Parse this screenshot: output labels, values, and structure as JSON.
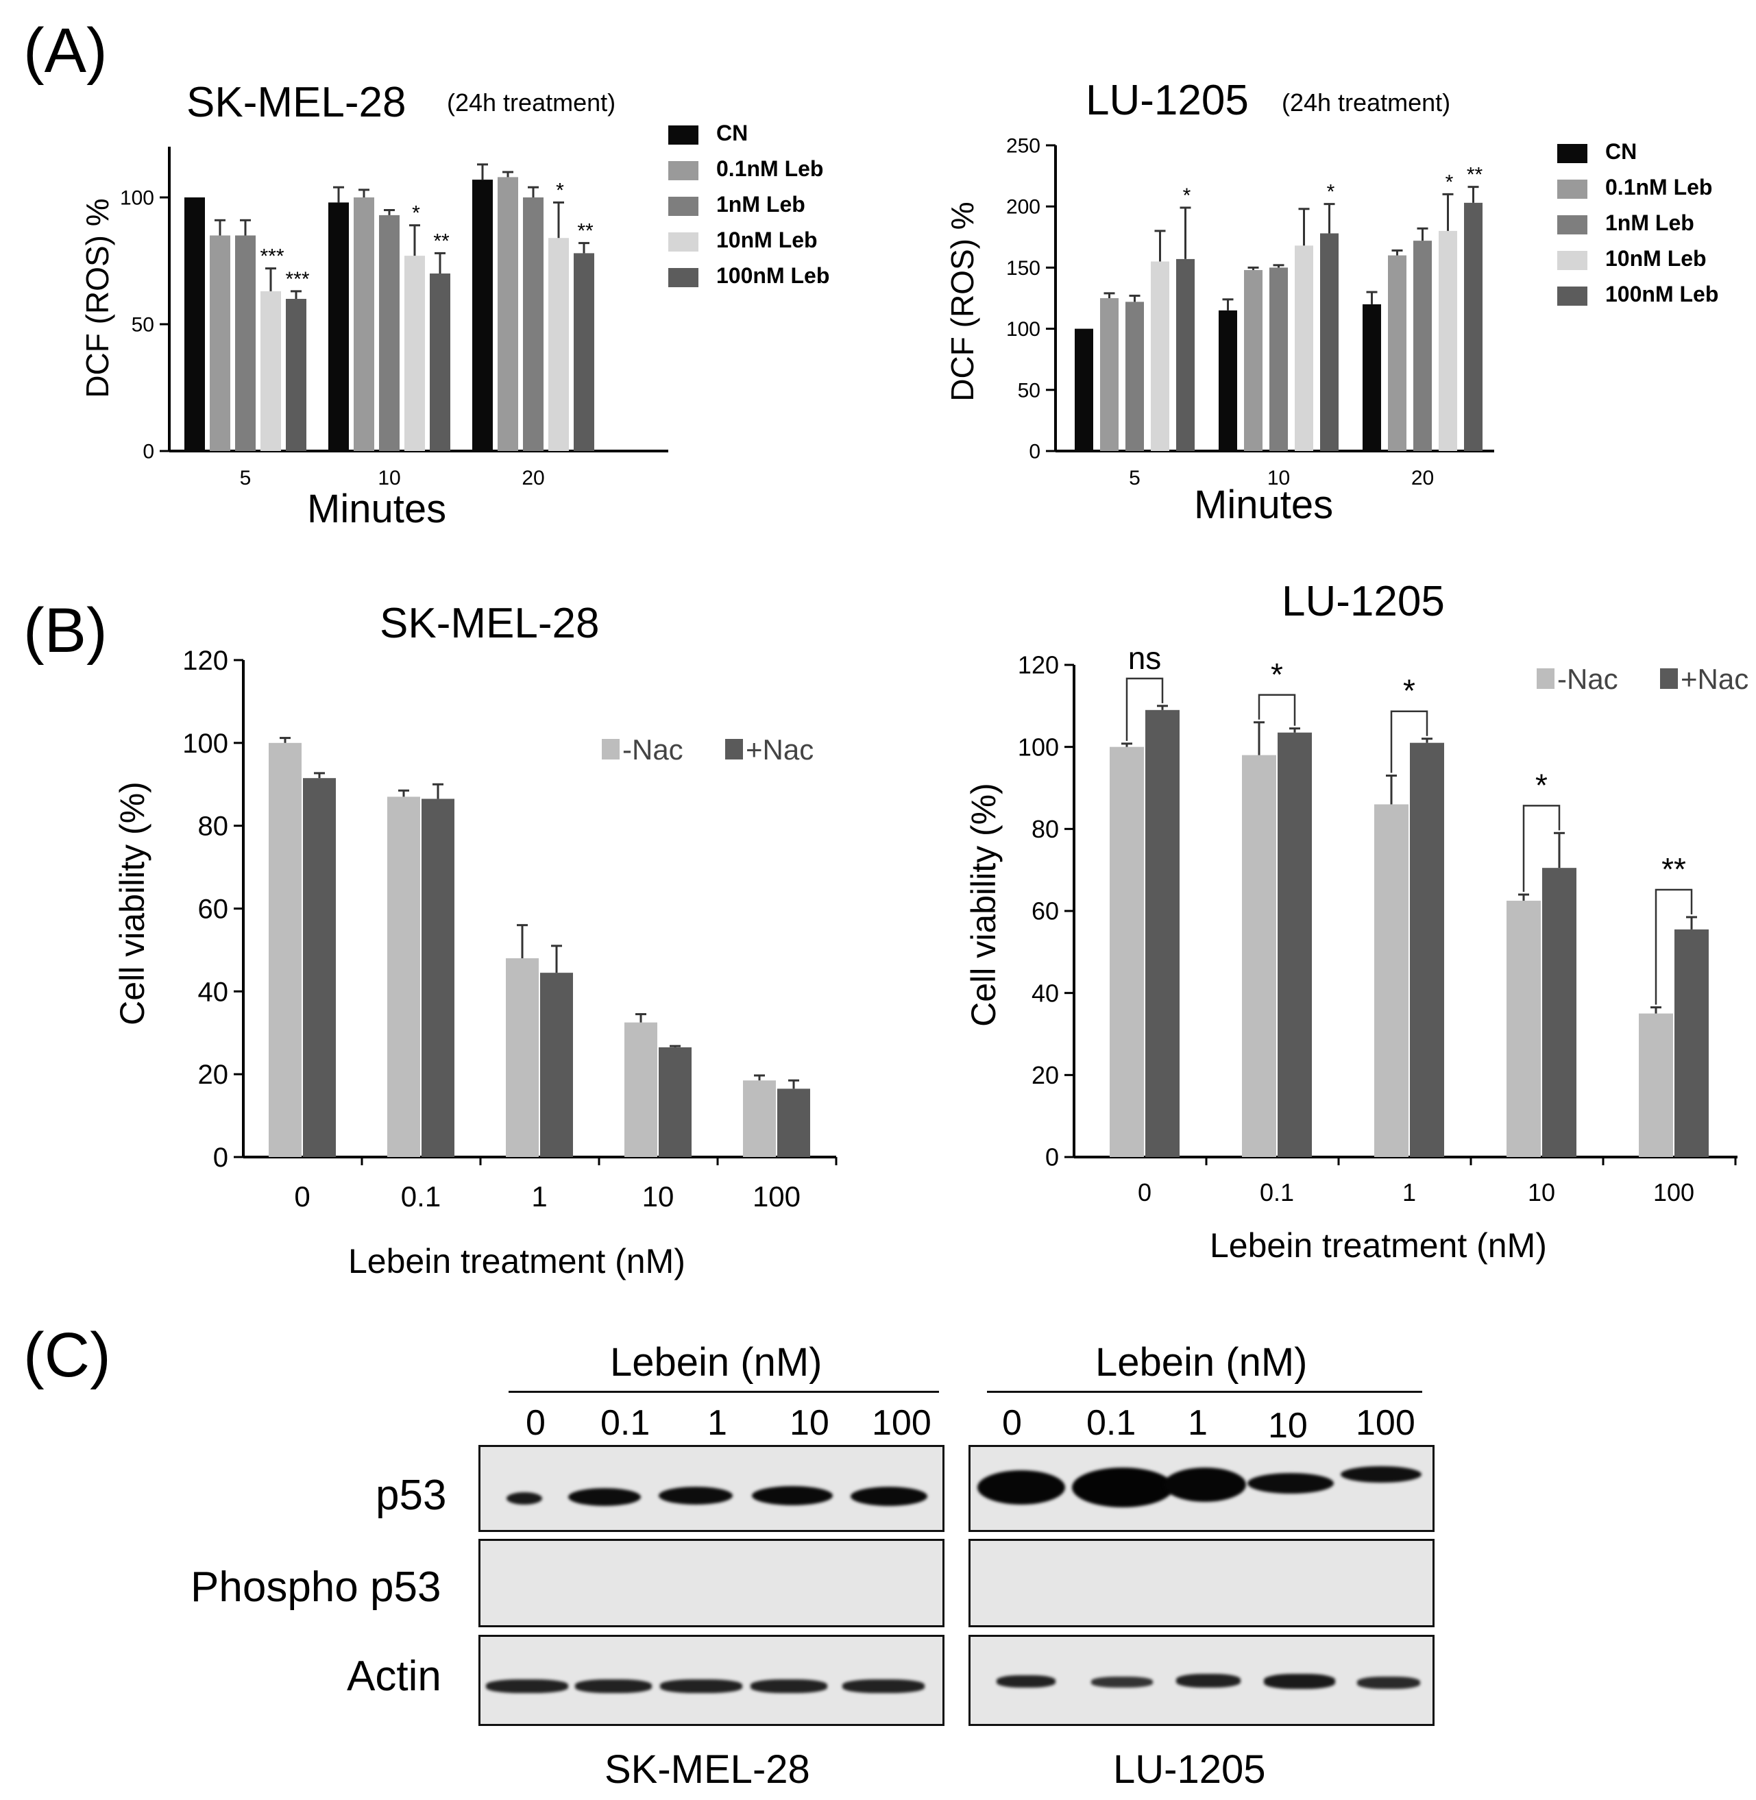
{
  "panel_labels": {
    "a": "(A)",
    "b": "(B)",
    "c": "(C)"
  },
  "colors": {
    "cn": "#0a0a0a",
    "leb_0_1": "#9a9a9a",
    "leb_1": "#7e7e7e",
    "leb_10": "#d6d6d6",
    "leb_100": "#5c5c5c",
    "minus_nac": "#bdbdbd",
    "plus_nac": "#5a5a5a"
  },
  "chart_data": [
    {
      "id": "a_skmel28",
      "type": "bar",
      "title": "SK-MEL-28",
      "subtitle": "(24h treatment)",
      "xlabel": "Minutes",
      "ylabel": "DCF (ROS) %",
      "ylim": [
        0,
        120
      ],
      "yticks": [
        "0",
        "50",
        "100"
      ],
      "categories": [
        "5",
        "10",
        "20"
      ],
      "legend_position": "right",
      "series": [
        {
          "name": "CN",
          "values": [
            100,
            98,
            107
          ],
          "errors": [
            0,
            6,
            6
          ],
          "sig": [
            "",
            "",
            ""
          ]
        },
        {
          "name": "0.1nM Leb",
          "values": [
            85,
            100,
            108
          ],
          "errors": [
            6,
            3,
            2
          ],
          "sig": [
            "",
            "",
            ""
          ]
        },
        {
          "name": "1nM Leb",
          "values": [
            85,
            93,
            100
          ],
          "errors": [
            6,
            2,
            4
          ],
          "sig": [
            "",
            "",
            ""
          ]
        },
        {
          "name": "10nM Leb",
          "values": [
            63,
            77,
            84
          ],
          "errors": [
            9,
            12,
            14
          ],
          "sig": [
            "***",
            "*",
            "*"
          ]
        },
        {
          "name": "100nM Leb",
          "values": [
            60,
            70,
            78
          ],
          "errors": [
            3,
            8,
            4
          ],
          "sig": [
            "***",
            "**",
            "**"
          ]
        }
      ]
    },
    {
      "id": "a_lu1205",
      "type": "bar",
      "title": "LU-1205",
      "subtitle": "(24h treatment)",
      "xlabel": "Minutes",
      "ylabel": "DCF (ROS) %",
      "ylim": [
        0,
        250
      ],
      "yticks": [
        "0",
        "50",
        "100",
        "150",
        "200",
        "250"
      ],
      "categories": [
        "5",
        "10",
        "20"
      ],
      "legend_position": "right",
      "series": [
        {
          "name": "CN",
          "values": [
            100,
            115,
            120
          ],
          "errors": [
            0,
            9,
            10
          ],
          "sig": [
            "",
            "",
            ""
          ]
        },
        {
          "name": "0.1nM Leb",
          "values": [
            125,
            148,
            160
          ],
          "errors": [
            4,
            2,
            4
          ],
          "sig": [
            "",
            "",
            ""
          ]
        },
        {
          "name": "1nM Leb",
          "values": [
            122,
            150,
            172
          ],
          "errors": [
            5,
            2,
            10
          ],
          "sig": [
            "",
            "",
            ""
          ]
        },
        {
          "name": "10nM Leb",
          "values": [
            155,
            168,
            180
          ],
          "errors": [
            25,
            30,
            30
          ],
          "sig": [
            "",
            "",
            "*"
          ]
        },
        {
          "name": "100nM Leb",
          "values": [
            157,
            178,
            203
          ],
          "errors": [
            42,
            24,
            13
          ],
          "sig": [
            "*",
            "*",
            "**"
          ]
        }
      ]
    },
    {
      "id": "b_skmel28",
      "type": "bar",
      "title": "SK-MEL-28",
      "xlabel": "Lebein treatment (nM)",
      "ylabel": "Cell viability (%)",
      "ylim": [
        0,
        120
      ],
      "yticks": [
        "0",
        "20",
        "40",
        "60",
        "80",
        "100",
        "120"
      ],
      "categories": [
        "0",
        "0.1",
        "1",
        "10",
        "100"
      ],
      "legend_position": "top-right",
      "series": [
        {
          "name": "-Nac",
          "values": [
            100,
            87,
            48,
            32.5,
            18.5
          ],
          "errors": [
            1.2,
            1.5,
            8,
            2,
            1.2
          ]
        },
        {
          "name": "+Nac",
          "values": [
            91.5,
            86.5,
            44.5,
            26.5,
            16.5
          ],
          "errors": [
            1.2,
            3.5,
            6.5,
            0.3,
            2
          ]
        }
      ],
      "brackets": []
    },
    {
      "id": "b_lu1205",
      "type": "bar",
      "title": "LU-1205",
      "xlabel": "Lebein treatment (nM)",
      "ylabel": "Cell viability (%)",
      "ylim": [
        0,
        120
      ],
      "yticks": [
        "0",
        "20",
        "40",
        "60",
        "80",
        "100",
        "120"
      ],
      "categories": [
        "0",
        "0.1",
        "1",
        "10",
        "100"
      ],
      "legend_position": "top-right",
      "series": [
        {
          "name": "-Nac",
          "values": [
            100,
            98,
            86,
            62.5,
            35
          ],
          "errors": [
            0.8,
            8,
            7,
            1.5,
            1.5
          ]
        },
        {
          "name": "+Nac",
          "values": [
            109,
            103.5,
            101,
            70.5,
            55.5
          ],
          "errors": [
            1,
            1,
            1,
            8.5,
            3
          ]
        }
      ],
      "brackets": [
        "ns",
        "*",
        "*",
        "*",
        "**"
      ]
    }
  ],
  "western_blot": {
    "lebein_label": "Lebein (nM)",
    "doses": [
      "0",
      "0.1",
      "1",
      "10",
      "100"
    ],
    "row_labels": [
      "p53",
      "Phospho p53",
      "Actin"
    ],
    "cell_lines": [
      "SK-MEL-28",
      "LU-1205"
    ]
  }
}
